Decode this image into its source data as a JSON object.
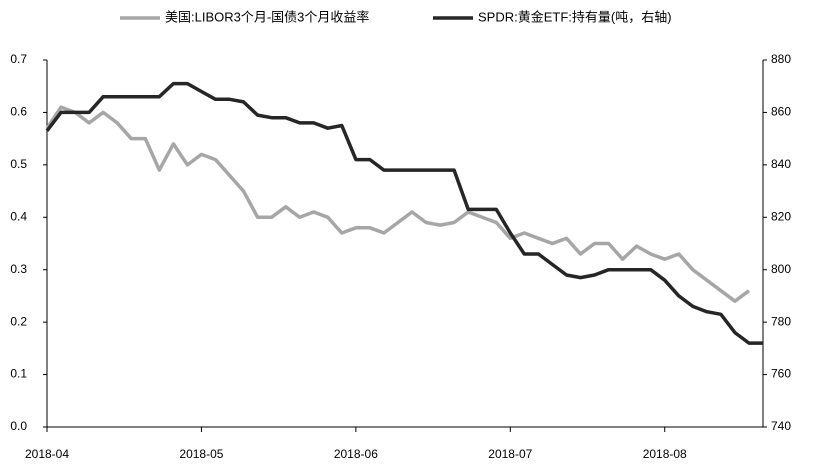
{
  "chart_data": {
    "type": "line",
    "categories": [
      "2018-04",
      null,
      null,
      null,
      null,
      null,
      null,
      null,
      null,
      null,
      null,
      "2018-05",
      null,
      null,
      null,
      null,
      null,
      null,
      null,
      null,
      null,
      null,
      "2018-06",
      null,
      null,
      null,
      null,
      null,
      null,
      null,
      null,
      null,
      null,
      "2018-07",
      null,
      null,
      null,
      null,
      null,
      null,
      null,
      null,
      null,
      null,
      "2018-08",
      null,
      null,
      null,
      null,
      null,
      null,
      null
    ],
    "series": [
      {
        "name": "美国:LIBOR3个月-国债3个月收益率",
        "color": "#a6a6a6",
        "values": [
          0.57,
          0.61,
          0.6,
          0.58,
          0.6,
          0.58,
          0.55,
          0.55,
          0.49,
          0.54,
          0.5,
          0.52,
          0.51,
          0.48,
          0.45,
          0.4,
          0.4,
          0.42,
          0.4,
          0.41,
          0.4,
          0.37,
          0.38,
          0.38,
          0.37,
          0.39,
          0.41,
          0.39,
          0.385,
          0.39,
          0.41,
          0.4,
          0.39,
          0.36,
          0.37,
          0.36,
          0.35,
          0.36,
          0.33,
          0.35,
          0.35,
          0.32,
          0.345,
          0.33,
          0.32,
          0.33,
          0.3,
          0.28,
          0.26,
          0.24,
          0.26,
          null
        ]
      },
      {
        "name": "SPDR:黄金ETF:持有量(吨，右轴)",
        "color": "#262626",
        "axis": "y2",
        "values": [
          853,
          860,
          860,
          860,
          866,
          866,
          866,
          866,
          866,
          871,
          871,
          868,
          865,
          865,
          864,
          859,
          858,
          858,
          856,
          856,
          854,
          855,
          842,
          842,
          838,
          838,
          838,
          838,
          838,
          838,
          823,
          823,
          823,
          814,
          806,
          806,
          802,
          798,
          797,
          798,
          800,
          800,
          800,
          800,
          796,
          790,
          786,
          784,
          783,
          776,
          772,
          772
        ]
      }
    ],
    "ylim": [
      0,
      0.7
    ],
    "yticks": [
      {
        "value": 0,
        "label": "0.0"
      },
      0.1,
      0.2,
      0.3,
      0.4,
      0.5,
      0.6,
      0.7
    ],
    "y2lim": [
      740,
      880
    ],
    "y2ticks": [
      740,
      760,
      780,
      800,
      820,
      840,
      860,
      880
    ],
    "grid": false,
    "legend": "top"
  }
}
